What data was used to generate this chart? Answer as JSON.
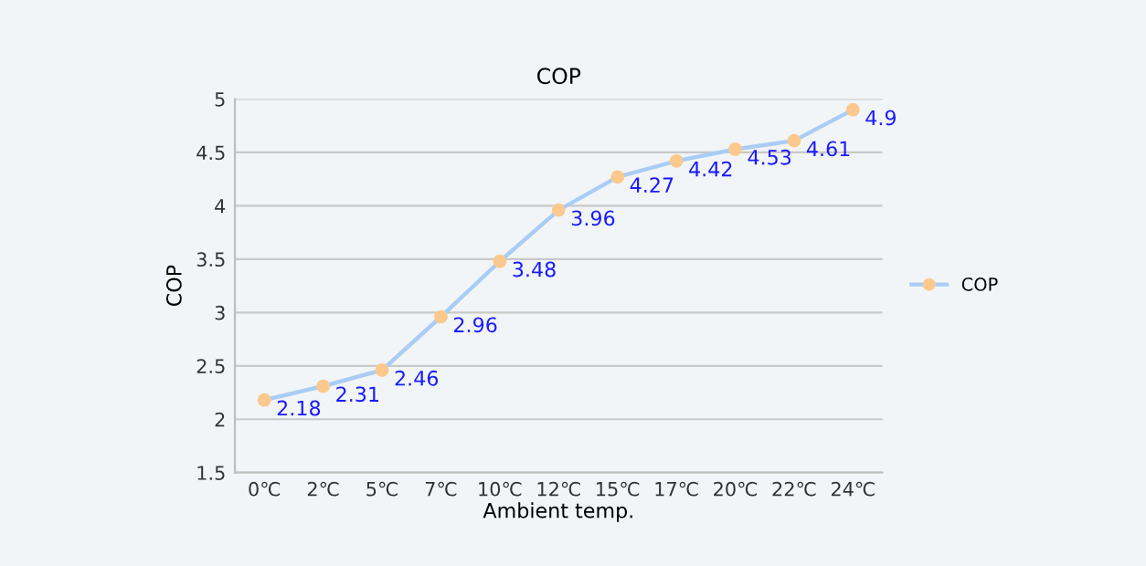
{
  "chart_data": {
    "type": "line",
    "title": "COP",
    "xlabel": "Ambient temp.",
    "ylabel": "COP",
    "categories": [
      "0℃",
      "2℃",
      "5℃",
      "7℃",
      "10℃",
      "12℃",
      "15℃",
      "17℃",
      "20℃",
      "22℃",
      "24℃"
    ],
    "series": [
      {
        "name": "COP",
        "color": "#a9cdf5",
        "colors": [
          "#fbc98e",
          "#fbc98e",
          "#fbc98e",
          "#fbc98e",
          "#fbc98e",
          "#fbc98e",
          "#fbc98e",
          "#fbc98e",
          "#fbc98e",
          "#fbc98e",
          "#fbc98e"
        ],
        "values": [
          2.18,
          2.31,
          2.46,
          2.96,
          3.48,
          3.96,
          4.27,
          4.42,
          4.53,
          4.61,
          4.9
        ]
      }
    ],
    "ylim": [
      1.5,
      5
    ],
    "yticks": [
      1.5,
      2,
      2.5,
      3,
      3.5,
      4,
      4.5,
      5
    ],
    "grid": "y",
    "legend": "right",
    "marker": "circle",
    "line_style": "solid",
    "data_labels": true
  }
}
